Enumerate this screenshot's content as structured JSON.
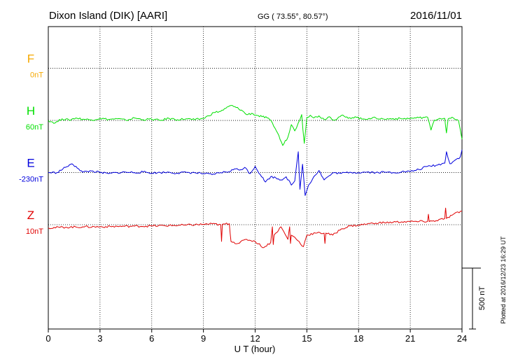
{
  "header": {
    "station": "Dixon Island (DIK)  [AARI]",
    "coords": "GG ( 73.55°,  80.57°)",
    "date": "2016/11/01"
  },
  "side_note": "Plotted at 2016/12/23 16:29 UT",
  "scale_bar_label": "500 nT",
  "colors": {
    "F": "#f5a800",
    "H": "#00e000",
    "E": "#0000dd",
    "Z": "#e00000",
    "grid": "#000000"
  },
  "chart_data": {
    "type": "line",
    "xlabel": "U T (hour)",
    "xlim": [
      0,
      24
    ],
    "x_ticks": [
      0,
      3,
      6,
      9,
      12,
      15,
      18,
      21,
      24
    ],
    "x_tick_labels": [
      "0",
      "3",
      "6",
      "9",
      "12",
      "15",
      "18",
      "21",
      "24"
    ],
    "y_unit": "nT",
    "y_range": [
      -1250,
      200
    ],
    "grid": true,
    "series": [
      {
        "name": "F",
        "baseline_label": "0nT",
        "baseline_offset": 0,
        "x": [],
        "values": []
      },
      {
        "name": "H",
        "baseline_label": "60nT",
        "baseline_offset": -250,
        "x": [
          0,
          0.4,
          0.8,
          1.2,
          1.6,
          2.0,
          2.5,
          3.0,
          3.5,
          4.0,
          4.5,
          5.0,
          5.5,
          6.0,
          6.5,
          7.0,
          7.5,
          8.0,
          8.5,
          9.0,
          9.3,
          9.6,
          10.0,
          10.3,
          10.6,
          10.9,
          11.2,
          11.5,
          11.8,
          12.1,
          12.4,
          12.7,
          13.0,
          13.3,
          13.6,
          13.9,
          14.1,
          14.3,
          14.5,
          14.7,
          14.85,
          15.0,
          15.2,
          15.4,
          15.7,
          16.0,
          16.3,
          16.6,
          17.0,
          17.4,
          17.8,
          18.2,
          18.6,
          19.0,
          19.5,
          20.0,
          20.5,
          21.0,
          21.5,
          22.0,
          22.2,
          22.4,
          22.7,
          23.0,
          23.1,
          23.2,
          23.5,
          23.8,
          24.0
        ],
        "values": [
          -250,
          -262,
          -242,
          -248,
          -238,
          -244,
          -247,
          -240,
          -245,
          -242,
          -249,
          -238,
          -246,
          -244,
          -250,
          -240,
          -246,
          -242,
          -247,
          -240,
          -228,
          -212,
          -206,
          -192,
          -178,
          -188,
          -200,
          -222,
          -216,
          -226,
          -232,
          -238,
          -262,
          -310,
          -370,
          -330,
          -270,
          -300,
          -262,
          -222,
          -360,
          -235,
          -225,
          -238,
          -228,
          -245,
          -232,
          -248,
          -226,
          -240,
          -232,
          -244,
          -240,
          -238,
          -244,
          -241,
          -242,
          -240,
          -237,
          -234,
          -296,
          -248,
          -240,
          -240,
          -310,
          -242,
          -238,
          -252,
          -340
        ]
      },
      {
        "name": "E",
        "baseline_label": "-230nT",
        "baseline_offset": -500,
        "x": [
          0,
          0.5,
          1.0,
          1.3,
          1.6,
          2.0,
          2.5,
          3.0,
          3.5,
          4.0,
          4.5,
          5.0,
          5.5,
          6.0,
          6.5,
          7.0,
          7.5,
          8.0,
          8.5,
          9.0,
          9.5,
          10.0,
          10.5,
          10.8,
          11.1,
          11.4,
          11.7,
          12.0,
          12.3,
          12.6,
          12.9,
          13.2,
          13.5,
          13.8,
          14.1,
          14.3,
          14.5,
          14.6,
          14.75,
          14.9,
          15.1,
          15.4,
          15.7,
          16.0,
          16.3,
          16.6,
          17.0,
          17.5,
          18.0,
          18.5,
          19.0,
          19.5,
          20.0,
          20.5,
          21.0,
          21.5,
          22.0,
          22.5,
          23.0,
          23.1,
          23.3,
          23.6,
          23.9,
          24.0
        ],
        "values": [
          -500,
          -500,
          -475,
          -460,
          -470,
          -498,
          -492,
          -500,
          -505,
          -500,
          -498,
          -500,
          -497,
          -502,
          -500,
          -498,
          -503,
          -499,
          -501,
          -505,
          -510,
          -500,
          -495,
          -482,
          -488,
          -475,
          -505,
          -470,
          -510,
          -545,
          -520,
          -525,
          -535,
          -520,
          -560,
          -540,
          -400,
          -580,
          -460,
          -610,
          -560,
          -520,
          -490,
          -535,
          -515,
          -500,
          -504,
          -498,
          -500,
          -497,
          -500,
          -498,
          -500,
          -496,
          -495,
          -485,
          -470,
          -465,
          -455,
          -400,
          -458,
          -440,
          -425,
          -390
        ]
      },
      {
        "name": "Z",
        "baseline_label": "10nT",
        "baseline_offset": -750,
        "x": [
          0,
          1,
          2,
          3,
          4,
          5,
          6,
          7,
          8,
          9,
          9.5,
          10.0,
          10.05,
          10.1,
          10.5,
          10.6,
          11.0,
          11.5,
          12.0,
          12.5,
          12.9,
          13.0,
          13.05,
          13.1,
          13.5,
          13.9,
          14.0,
          14.05,
          14.1,
          14.3,
          14.8,
          15.0,
          15.5,
          16.0,
          16.05,
          16.1,
          16.5,
          17.0,
          17.5,
          18.0,
          18.5,
          19.0,
          19.5,
          20.0,
          20.5,
          21.0,
          21.5,
          22.0,
          22.05,
          22.1,
          22.5,
          23.0,
          23.05,
          23.1,
          23.5,
          24.0
        ],
        "values": [
          -765,
          -762,
          -760,
          -760,
          -758,
          -757,
          -756,
          -754,
          -752,
          -748,
          -746,
          -750,
          -830,
          -748,
          -745,
          -830,
          -840,
          -820,
          -830,
          -860,
          -835,
          -760,
          -845,
          -800,
          -760,
          -820,
          -760,
          -840,
          -800,
          -810,
          -855,
          -800,
          -790,
          -790,
          -840,
          -790,
          -800,
          -770,
          -756,
          -752,
          -746,
          -742,
          -740,
          -738,
          -736,
          -735,
          -735,
          -734,
          -700,
          -735,
          -730,
          -720,
          -670,
          -720,
          -700,
          -685
        ]
      }
    ]
  }
}
